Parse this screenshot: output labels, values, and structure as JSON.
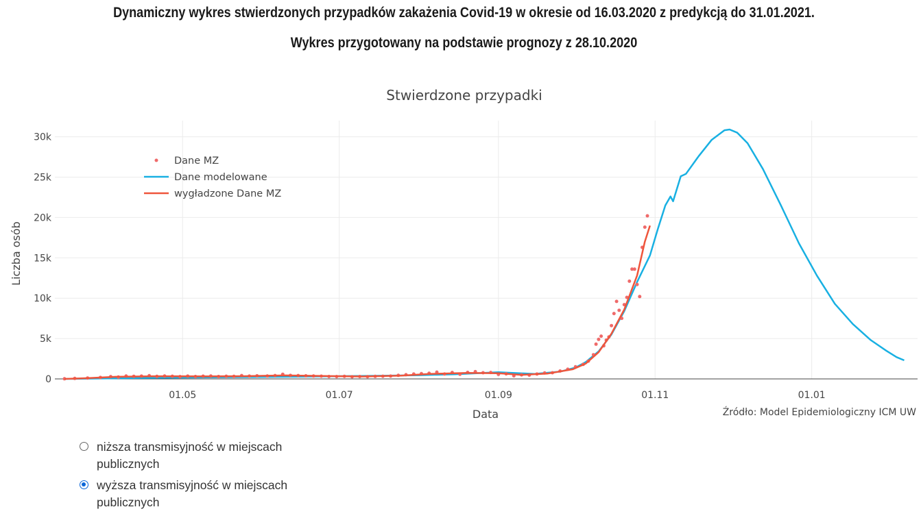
{
  "header": {
    "line1": "Dynamiczny wykres stwierdzonych przypadków zakażenia Covid-19 w okresie od 16.03.2020 z predykcją do 31.01.2021.",
    "line2": "Wykres przygotowany na podstawie prognozy z 28.10.2020"
  },
  "chart_data": {
    "type": "line",
    "title": "Stwierdzone przypadki",
    "xlabel": "Data",
    "ylabel": "Liczba osób",
    "xlim": [
      "2020-03-16",
      "2021-01-31"
    ],
    "ylim": [
      0,
      32000
    ],
    "x_ticks": [
      {
        "date": "2020-05-01",
        "label": "01.05"
      },
      {
        "date": "2020-07-01",
        "label": "01.07"
      },
      {
        "date": "2020-09-01",
        "label": "01.09"
      },
      {
        "date": "2020-11-01",
        "label": "01.11"
      },
      {
        "date": "2021-01-01",
        "label": "01.01"
      }
    ],
    "y_ticks": [
      {
        "value": 0,
        "label": "0"
      },
      {
        "value": 5000,
        "label": "5k"
      },
      {
        "value": 10000,
        "label": "10k"
      },
      {
        "value": 15000,
        "label": "15k"
      },
      {
        "value": 20000,
        "label": "20k"
      },
      {
        "value": 25000,
        "label": "25k"
      },
      {
        "value": 30000,
        "label": "30k"
      }
    ],
    "grid": true,
    "legend_position": "top-left",
    "annotation": "Źródło: Model Epidemiologiczny ICM UW",
    "series": [
      {
        "name": "Dane MZ",
        "mode": "markers",
        "color": "#ef6a6a",
        "points": [
          [
            "2020-03-16",
            20
          ],
          [
            "2020-03-20",
            60
          ],
          [
            "2020-03-25",
            110
          ],
          [
            "2020-03-30",
            180
          ],
          [
            "2020-04-03",
            290
          ],
          [
            "2020-04-06",
            230
          ],
          [
            "2020-04-09",
            360
          ],
          [
            "2020-04-12",
            320
          ],
          [
            "2020-04-15",
            350
          ],
          [
            "2020-04-18",
            400
          ],
          [
            "2020-04-21",
            310
          ],
          [
            "2020-04-24",
            360
          ],
          [
            "2020-04-27",
            330
          ],
          [
            "2020-04-30",
            290
          ],
          [
            "2020-05-03",
            350
          ],
          [
            "2020-05-06",
            300
          ],
          [
            "2020-05-09",
            340
          ],
          [
            "2020-05-12",
            360
          ],
          [
            "2020-05-15",
            300
          ],
          [
            "2020-05-18",
            330
          ],
          [
            "2020-05-21",
            310
          ],
          [
            "2020-05-24",
            420
          ],
          [
            "2020-05-27",
            350
          ],
          [
            "2020-05-30",
            380
          ],
          [
            "2020-06-03",
            360
          ],
          [
            "2020-06-06",
            420
          ],
          [
            "2020-06-09",
            580
          ],
          [
            "2020-06-12",
            430
          ],
          [
            "2020-06-15",
            420
          ],
          [
            "2020-06-18",
            380
          ],
          [
            "2020-06-21",
            360
          ],
          [
            "2020-06-24",
            340
          ],
          [
            "2020-06-27",
            300
          ],
          [
            "2020-06-30",
            290
          ],
          [
            "2020-07-03",
            320
          ],
          [
            "2020-07-06",
            260
          ],
          [
            "2020-07-09",
            300
          ],
          [
            "2020-07-12",
            280
          ],
          [
            "2020-07-15",
            310
          ],
          [
            "2020-07-18",
            330
          ],
          [
            "2020-07-21",
            350
          ],
          [
            "2020-07-24",
            440
          ],
          [
            "2020-07-27",
            520
          ],
          [
            "2020-07-30",
            600
          ],
          [
            "2020-08-02",
            650
          ],
          [
            "2020-08-05",
            700
          ],
          [
            "2020-08-08",
            840
          ],
          [
            "2020-08-11",
            600
          ],
          [
            "2020-08-14",
            800
          ],
          [
            "2020-08-17",
            580
          ],
          [
            "2020-08-20",
            810
          ],
          [
            "2020-08-23",
            900
          ],
          [
            "2020-08-26",
            760
          ],
          [
            "2020-08-29",
            800
          ],
          [
            "2020-09-01",
            560
          ],
          [
            "2020-09-04",
            630
          ],
          [
            "2020-09-07",
            380
          ],
          [
            "2020-09-10",
            500
          ],
          [
            "2020-09-13",
            470
          ],
          [
            "2020-09-16",
            600
          ],
          [
            "2020-09-19",
            740
          ],
          [
            "2020-09-22",
            760
          ],
          [
            "2020-09-25",
            980
          ],
          [
            "2020-09-28",
            1200
          ],
          [
            "2020-10-01",
            1500
          ],
          [
            "2020-10-04",
            1800
          ],
          [
            "2020-10-06",
            2200
          ],
          [
            "2020-10-08",
            3000
          ],
          [
            "2020-10-09",
            4300
          ],
          [
            "2020-10-10",
            4900
          ],
          [
            "2020-10-11",
            5300
          ],
          [
            "2020-10-12",
            4100
          ],
          [
            "2020-10-13",
            4800
          ],
          [
            "2020-10-14",
            5200
          ],
          [
            "2020-10-15",
            6600
          ],
          [
            "2020-10-16",
            8100
          ],
          [
            "2020-10-17",
            9600
          ],
          [
            "2020-10-18",
            8500
          ],
          [
            "2020-10-19",
            7500
          ],
          [
            "2020-10-20",
            9200
          ],
          [
            "2020-10-21",
            10100
          ],
          [
            "2020-10-22",
            12100
          ],
          [
            "2020-10-23",
            13600
          ],
          [
            "2020-10-24",
            13600
          ],
          [
            "2020-10-25",
            11700
          ],
          [
            "2020-10-26",
            10200
          ],
          [
            "2020-10-27",
            16300
          ],
          [
            "2020-10-28",
            18800
          ],
          [
            "2020-10-29",
            20200
          ]
        ]
      },
      {
        "name": "Dane modelowane",
        "mode": "lines",
        "color": "#18b0e2",
        "points": [
          [
            "2020-03-16",
            0
          ],
          [
            "2020-04-15",
            120
          ],
          [
            "2020-05-15",
            200
          ],
          [
            "2020-06-15",
            280
          ],
          [
            "2020-07-15",
            380
          ],
          [
            "2020-08-01",
            460
          ],
          [
            "2020-08-15",
            580
          ],
          [
            "2020-09-01",
            820
          ],
          [
            "2020-09-15",
            620
          ],
          [
            "2020-09-25",
            900
          ],
          [
            "2020-10-01",
            1400
          ],
          [
            "2020-10-05",
            2100
          ],
          [
            "2020-10-10",
            3400
          ],
          [
            "2020-10-15",
            5500
          ],
          [
            "2020-10-20",
            8400
          ],
          [
            "2020-10-25",
            12000
          ],
          [
            "2020-10-30",
            15300
          ],
          [
            "2020-11-02",
            18500
          ],
          [
            "2020-11-05",
            21500
          ],
          [
            "2020-11-07",
            22600
          ],
          [
            "2020-11-08",
            22000
          ],
          [
            "2020-11-11",
            25100
          ],
          [
            "2020-11-13",
            25400
          ],
          [
            "2020-11-18",
            27600
          ],
          [
            "2020-11-23",
            29600
          ],
          [
            "2020-11-28",
            30800
          ],
          [
            "2020-11-30",
            30900
          ],
          [
            "2020-12-03",
            30500
          ],
          [
            "2020-12-07",
            29200
          ],
          [
            "2020-12-13",
            26000
          ],
          [
            "2020-12-20",
            21500
          ],
          [
            "2020-12-27",
            16800
          ],
          [
            "2021-01-03",
            12800
          ],
          [
            "2021-01-10",
            9300
          ],
          [
            "2021-01-17",
            6800
          ],
          [
            "2021-01-24",
            4800
          ],
          [
            "2021-01-30",
            3500
          ],
          [
            "2021-02-03",
            2700
          ],
          [
            "2021-02-06",
            2300
          ]
        ]
      },
      {
        "name": "wygładzone Dane MZ",
        "mode": "lines",
        "color": "#ef553b",
        "points": [
          [
            "2020-03-16",
            0
          ],
          [
            "2020-03-25",
            90
          ],
          [
            "2020-04-05",
            260
          ],
          [
            "2020-04-20",
            330
          ],
          [
            "2020-05-10",
            320
          ],
          [
            "2020-05-25",
            340
          ],
          [
            "2020-06-10",
            430
          ],
          [
            "2020-06-25",
            360
          ],
          [
            "2020-07-10",
            300
          ],
          [
            "2020-07-25",
            400
          ],
          [
            "2020-08-05",
            620
          ],
          [
            "2020-08-20",
            740
          ],
          [
            "2020-09-01",
            700
          ],
          [
            "2020-09-10",
            500
          ],
          [
            "2020-09-20",
            650
          ],
          [
            "2020-09-30",
            1200
          ],
          [
            "2020-10-05",
            1900
          ],
          [
            "2020-10-10",
            3300
          ],
          [
            "2020-10-15",
            5600
          ],
          [
            "2020-10-20",
            8600
          ],
          [
            "2020-10-25",
            12800
          ],
          [
            "2020-10-28",
            17000
          ],
          [
            "2020-10-30",
            19000
          ]
        ]
      }
    ]
  },
  "controls": {
    "options": [
      {
        "label": "niższa transmisyjność w miejscach publicznych",
        "selected": false
      },
      {
        "label": "wyższa transmisyjność w miejscach publicznych",
        "selected": true
      }
    ]
  }
}
